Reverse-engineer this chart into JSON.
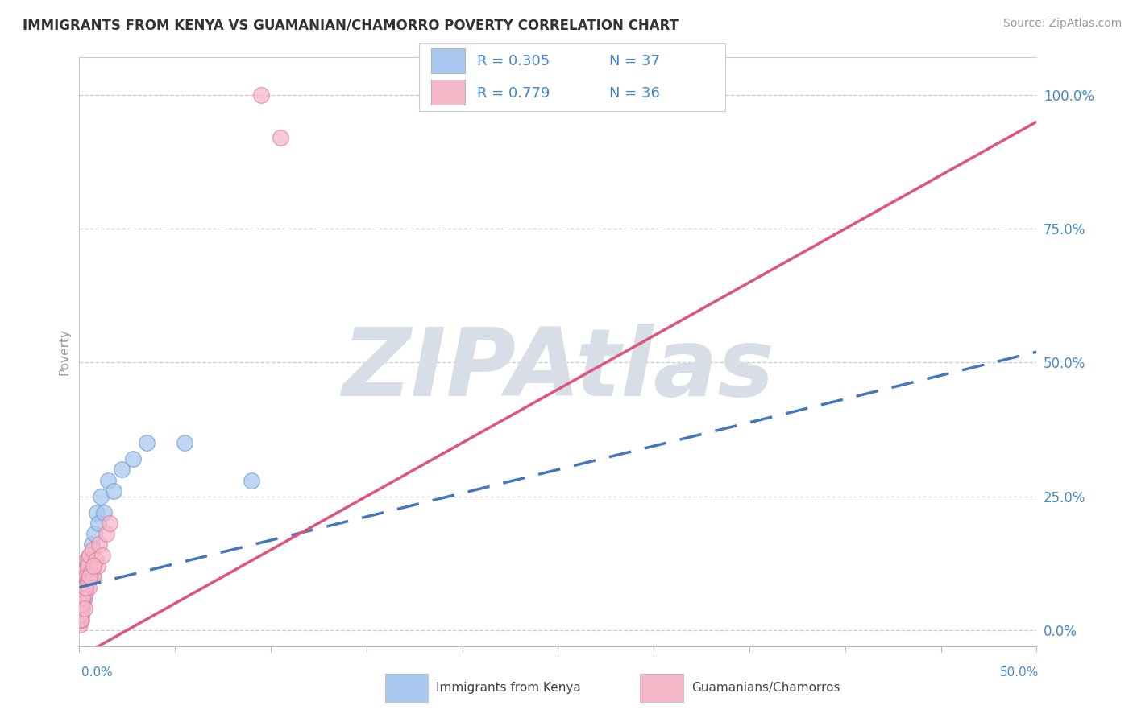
{
  "title": "IMMIGRANTS FROM KENYA VS GUAMANIAN/CHAMORRO POVERTY CORRELATION CHART",
  "source": "Source: ZipAtlas.com",
  "ylabel": "Poverty",
  "xlim": [
    0,
    50
  ],
  "ylim": [
    -3,
    107
  ],
  "ytick_vals": [
    0,
    25,
    50,
    75,
    100
  ],
  "ytick_labels": [
    "0.0%",
    "25.0%",
    "50.0%",
    "75.0%",
    "100.0%"
  ],
  "xtick_left": "0.0%",
  "xtick_right": "50.0%",
  "legend_r1": "0.305",
  "legend_n1": "37",
  "legend_r2": "0.779",
  "legend_n2": "36",
  "color_blue_fill": "#A8C8F0",
  "color_blue_edge": "#6699CC",
  "color_blue_line": "#4477BB",
  "color_pink_fill": "#F5B8C8",
  "color_pink_edge": "#DD7799",
  "color_pink_line": "#DD5577",
  "color_text_blue": "#4488CC",
  "color_axis": "#BBBBBB",
  "color_grid": "#CCCCCC",
  "watermark": "ZIPAtlas",
  "watermark_color": "#D8DEE8",
  "background": "#FFFFFF",
  "blue_x": [
    0.05,
    0.08,
    0.1,
    0.12,
    0.15,
    0.18,
    0.2,
    0.22,
    0.25,
    0.28,
    0.3,
    0.33,
    0.36,
    0.4,
    0.44,
    0.48,
    0.52,
    0.58,
    0.64,
    0.7,
    0.8,
    0.9,
    1.0,
    1.1,
    1.3,
    1.5,
    1.8,
    2.2,
    2.8,
    3.5,
    0.06,
    0.09,
    0.14,
    0.17,
    0.23,
    5.5,
    9.0
  ],
  "blue_y": [
    2,
    4,
    6,
    3,
    5,
    8,
    7,
    9,
    10,
    6,
    8,
    12,
    9,
    11,
    13,
    10,
    14,
    12,
    16,
    10,
    18,
    22,
    20,
    25,
    22,
    28,
    26,
    30,
    32,
    35,
    3,
    4,
    6,
    7,
    8,
    35,
    28
  ],
  "pink_x": [
    0.04,
    0.07,
    0.09,
    0.11,
    0.13,
    0.16,
    0.19,
    0.21,
    0.24,
    0.27,
    0.31,
    0.35,
    0.38,
    0.42,
    0.46,
    0.5,
    0.55,
    0.6,
    0.68,
    0.75,
    0.85,
    0.95,
    1.05,
    1.2,
    1.4,
    1.6,
    0.06,
    0.08,
    0.12,
    0.17,
    0.26,
    0.32,
    0.55,
    0.75,
    9.5,
    10.5
  ],
  "pink_y": [
    1,
    3,
    2,
    5,
    4,
    7,
    6,
    9,
    8,
    11,
    7,
    10,
    13,
    9,
    12,
    8,
    14,
    11,
    15,
    10,
    13,
    12,
    16,
    14,
    18,
    20,
    3,
    2,
    5,
    6,
    4,
    8,
    10,
    12,
    100,
    92
  ],
  "blue_trend_x": [
    0,
    50
  ],
  "blue_trend_y": [
    8,
    52
  ],
  "pink_trend_x": [
    0,
    50
  ],
  "pink_trend_y": [
    -5,
    95
  ],
  "marker_size": 200
}
